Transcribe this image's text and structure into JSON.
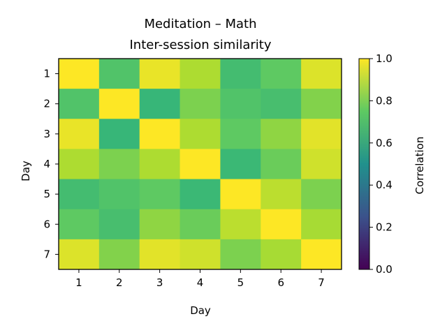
{
  "chart_data": {
    "type": "heatmap",
    "title": "Meditation – Math",
    "subtitle": "Inter-session similarity",
    "xlabel": "Day",
    "ylabel": "Day",
    "x_categories": [
      "1",
      "2",
      "3",
      "4",
      "5",
      "6",
      "7"
    ],
    "y_categories": [
      "1",
      "2",
      "3",
      "4",
      "5",
      "6",
      "7"
    ],
    "values": [
      [
        1.0,
        0.72,
        0.97,
        0.88,
        0.69,
        0.75,
        0.95
      ],
      [
        0.72,
        1.0,
        0.66,
        0.8,
        0.72,
        0.7,
        0.81
      ],
      [
        0.97,
        0.66,
        1.0,
        0.88,
        0.75,
        0.83,
        0.96
      ],
      [
        0.88,
        0.8,
        0.88,
        1.0,
        0.67,
        0.77,
        0.93
      ],
      [
        0.69,
        0.72,
        0.75,
        0.67,
        1.0,
        0.9,
        0.8
      ],
      [
        0.75,
        0.7,
        0.83,
        0.77,
        0.9,
        1.0,
        0.87
      ],
      [
        0.95,
        0.81,
        0.96,
        0.93,
        0.8,
        0.87,
        1.0
      ]
    ],
    "colorbar": {
      "label": "Correlation",
      "range": [
        0.0,
        1.0
      ],
      "ticks": [
        "0.0",
        "0.2",
        "0.4",
        "0.6",
        "0.8",
        "1.0"
      ],
      "colormap": "viridis"
    },
    "grid": false
  }
}
